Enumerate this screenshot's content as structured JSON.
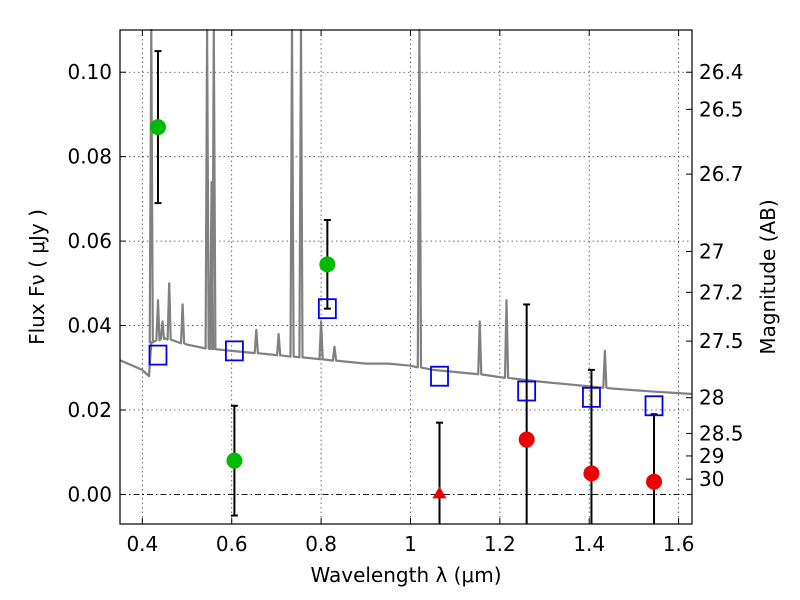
{
  "chart_data": {
    "type": "scatter",
    "xlabel": "Wavelength  λ (μm)",
    "ylabel": "Flux  F_ν ( μJy )",
    "y2label": "Magnitude (AB)",
    "xlim": [
      0.35,
      1.63
    ],
    "ylim": [
      -0.007,
      0.11
    ],
    "xticks": [
      0.4,
      0.6,
      0.8,
      1.0,
      1.2,
      1.4,
      1.6
    ],
    "xtick_labels": [
      "0.4",
      "0.6",
      "0.8",
      "1",
      "1.2",
      "1.4",
      "1.6"
    ],
    "yticks": [
      0.0,
      0.02,
      0.04,
      0.06,
      0.08,
      0.1
    ],
    "ytick_labels": [
      "0.00",
      "0.02",
      "0.04",
      "0.06",
      "0.08",
      "0.10"
    ],
    "magnitude_ticks": [
      "26.4",
      "26.5",
      "26.7",
      "27",
      "27.2",
      "27.5",
      "28",
      "28.5",
      "29",
      "30"
    ],
    "grid": true,
    "zero_line": true,
    "colors": {
      "model": "#808080",
      "detection": "#00bb00",
      "upper_limit": "#ee0000",
      "model_photometry": "#0000ee",
      "errorbar": "#000000"
    },
    "series": [
      {
        "marker": "circle",
        "color": "#00bb00",
        "points": [
          {
            "x": 0.435,
            "y": 0.087,
            "err": 0.018
          },
          {
            "x": 0.606,
            "y": 0.008,
            "err": 0.013
          },
          {
            "x": 0.814,
            "y": 0.0545,
            "err": 0.0105
          }
        ]
      },
      {
        "marker": "circle",
        "color": "#ee0000",
        "points": [
          {
            "x": 1.26,
            "y": 0.013,
            "err": 0.032
          },
          {
            "x": 1.405,
            "y": 0.005,
            "err": 0.0245
          },
          {
            "x": 1.545,
            "y": 0.003,
            "err": 0.016
          }
        ]
      },
      {
        "marker": "triangle",
        "color": "#ee0000",
        "points": [
          {
            "x": 1.065,
            "y": 0.0,
            "err": 0.017
          }
        ]
      },
      {
        "marker": "square-open",
        "color": "#0000ee",
        "points": [
          {
            "x": 0.435,
            "y": 0.033
          },
          {
            "x": 0.606,
            "y": 0.034
          },
          {
            "x": 0.814,
            "y": 0.044
          },
          {
            "x": 1.065,
            "y": 0.028
          },
          {
            "x": 1.26,
            "y": 0.0245
          },
          {
            "x": 1.405,
            "y": 0.023
          },
          {
            "x": 1.545,
            "y": 0.021
          }
        ]
      },
      {
        "marker": "line",
        "color": "#808080",
        "continuum": [
          [
            0.35,
            0.0318
          ],
          [
            0.4,
            0.0295
          ],
          [
            0.415,
            0.028
          ],
          [
            0.42,
            0.036
          ],
          [
            0.45,
            0.037
          ],
          [
            0.5,
            0.0355
          ],
          [
            0.55,
            0.0345
          ],
          [
            0.6,
            0.034
          ],
          [
            0.65,
            0.0335
          ],
          [
            0.7,
            0.033
          ],
          [
            0.75,
            0.0325
          ],
          [
            0.8,
            0.032
          ],
          [
            0.85,
            0.0315
          ],
          [
            0.9,
            0.031
          ],
          [
            0.95,
            0.031
          ],
          [
            1.0,
            0.0305
          ],
          [
            1.05,
            0.0295
          ],
          [
            1.1,
            0.029
          ],
          [
            1.15,
            0.0285
          ],
          [
            1.2,
            0.0278
          ],
          [
            1.25,
            0.0272
          ],
          [
            1.3,
            0.0266
          ],
          [
            1.35,
            0.0261
          ],
          [
            1.4,
            0.0256
          ],
          [
            1.45,
            0.0251
          ],
          [
            1.5,
            0.0247
          ],
          [
            1.55,
            0.0243
          ],
          [
            1.6,
            0.024
          ],
          [
            1.63,
            0.0238
          ]
        ],
        "emission_lines": [
          {
            "x": 0.42,
            "peak": 0.11
          },
          {
            "x": 0.435,
            "peak": 0.046
          },
          {
            "x": 0.445,
            "peak": 0.041
          },
          {
            "x": 0.46,
            "peak": 0.05
          },
          {
            "x": 0.49,
            "peak": 0.045
          },
          {
            "x": 0.545,
            "peak": 0.11
          },
          {
            "x": 0.555,
            "peak": 0.074
          },
          {
            "x": 0.56,
            "peak": 0.11
          },
          {
            "x": 0.655,
            "peak": 0.039
          },
          {
            "x": 0.705,
            "peak": 0.038
          },
          {
            "x": 0.735,
            "peak": 0.11
          },
          {
            "x": 0.755,
            "peak": 0.11
          },
          {
            "x": 0.8,
            "peak": 0.041
          },
          {
            "x": 0.83,
            "peak": 0.035
          },
          {
            "x": 1.02,
            "peak": 0.11
          },
          {
            "x": 1.155,
            "peak": 0.041
          },
          {
            "x": 1.215,
            "peak": 0.046
          },
          {
            "x": 1.435,
            "peak": 0.034
          }
        ]
      }
    ]
  }
}
